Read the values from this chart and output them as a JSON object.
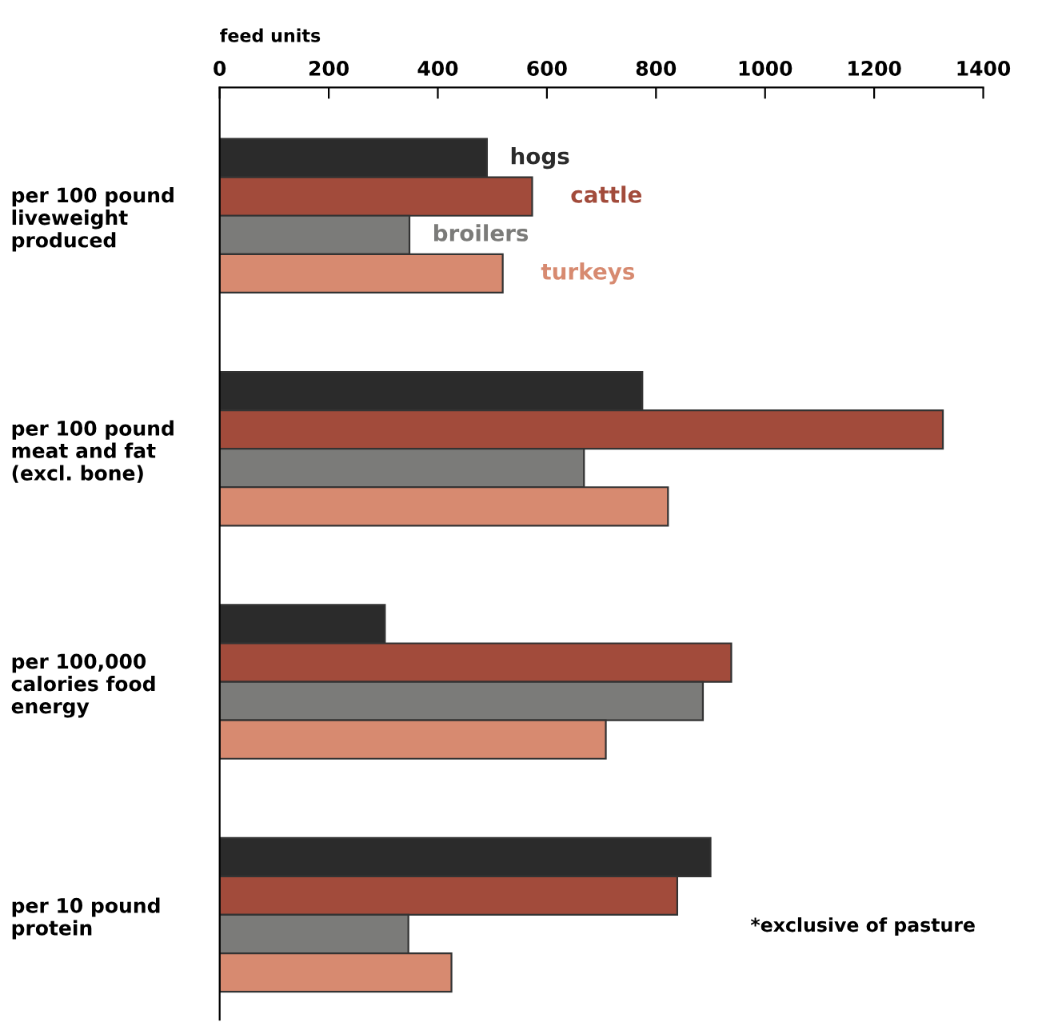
{
  "chart_data": {
    "type": "bar",
    "orientation": "horizontal",
    "xlabel": "feed units",
    "categories": [
      "per 100 pound\nliveweight\nproduced",
      "per 100 pound\nmeat and fat\n(excl. bone)",
      "per 100,000\ncalories food\nenergy",
      "per 10 pound\nprotein"
    ],
    "series": [
      {
        "name": "hogs",
        "color": "#2b2b2b",
        "values": [
          490,
          775,
          303,
          900
        ]
      },
      {
        "name": "cattle",
        "color": "#a24b3b",
        "values": [
          573,
          1326,
          938,
          839
        ]
      },
      {
        "name": "broilers",
        "color": "#7b7b79",
        "values": [
          348,
          668,
          886,
          346
        ]
      },
      {
        "name": "turkeys",
        "color": "#d78a70",
        "values": [
          519,
          822,
          708,
          425
        ]
      }
    ],
    "xlim": [
      0,
      1400
    ],
    "xticks": [
      0,
      200,
      400,
      600,
      800,
      1000,
      1200,
      1400
    ],
    "grid": false,
    "legend": false,
    "annotations": [
      "*exclusive of pasture"
    ]
  }
}
